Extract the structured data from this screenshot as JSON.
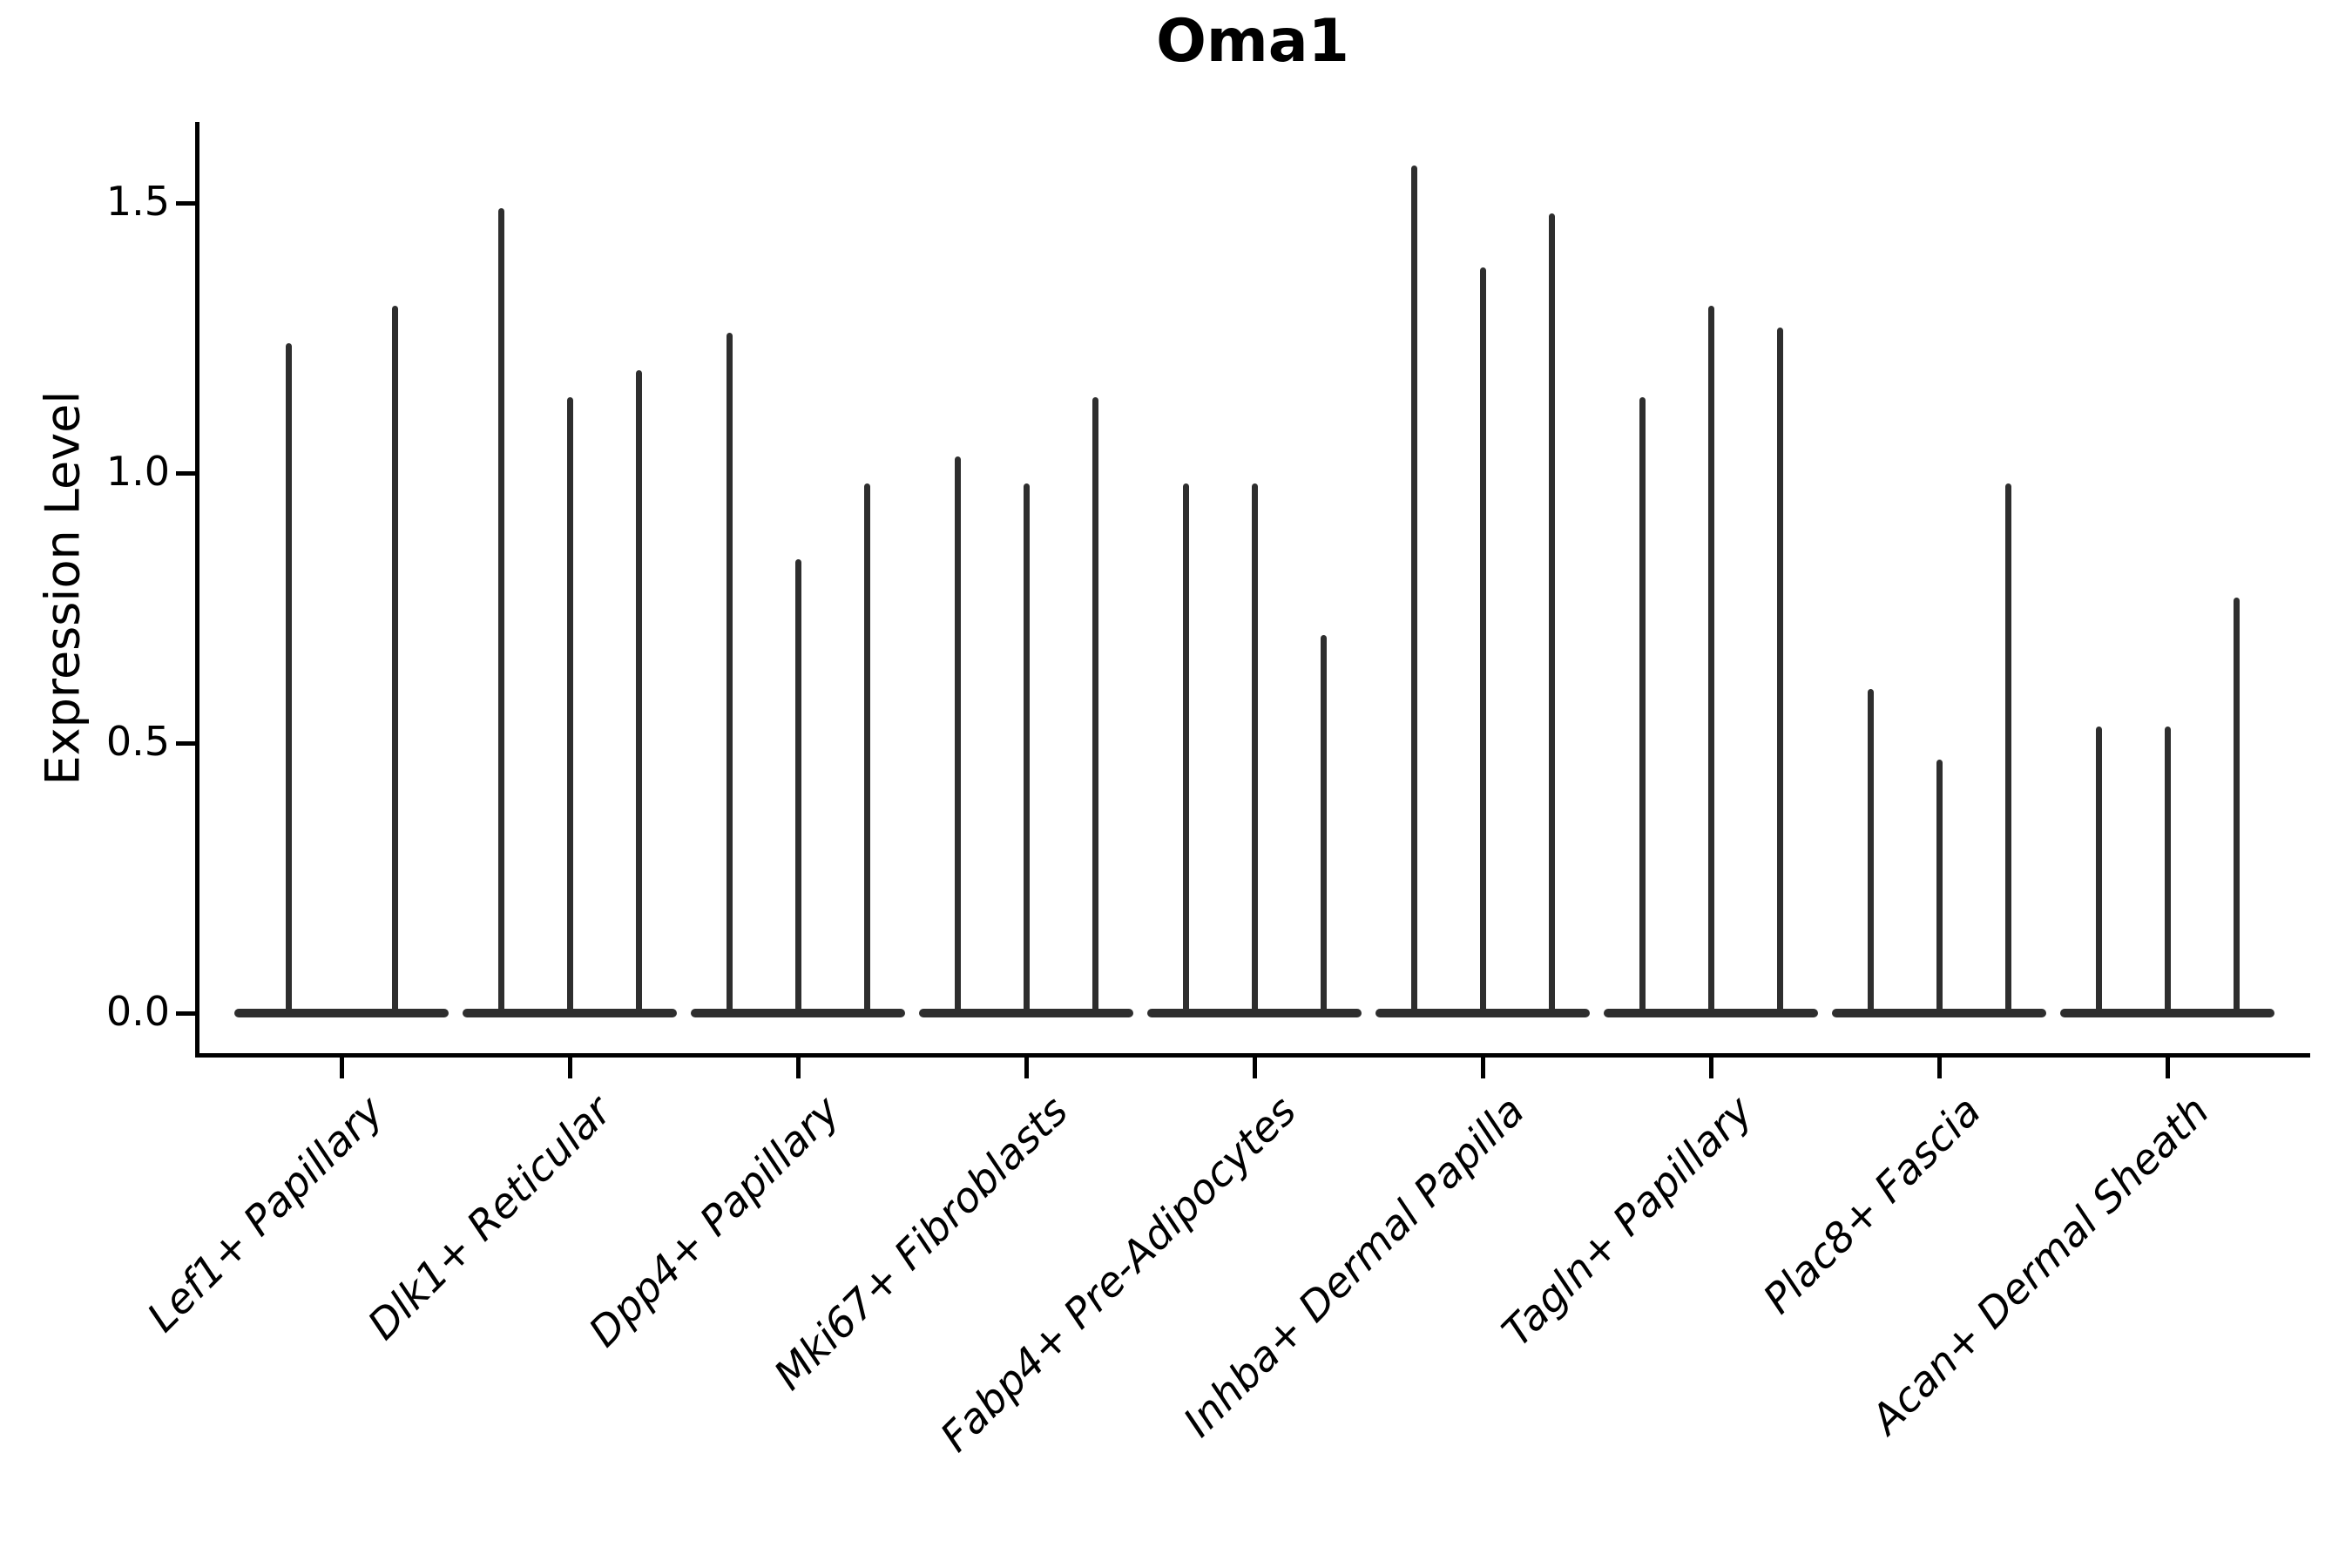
{
  "title": "Oma1",
  "axes": {
    "ylabel": "Expression Level",
    "ytick_labels": [
      "0.0",
      "0.5",
      "1.0",
      "1.5"
    ]
  },
  "colors": {
    "violin": "#2e2e2e",
    "axis": "#000000",
    "text": "#000000",
    "background": "#ffffff"
  },
  "chart_data": {
    "type": "violin",
    "title": "Oma1",
    "xlabel": "",
    "ylabel": "Expression Level",
    "ylim": [
      -0.07,
      1.65
    ],
    "yticks": [
      0.0,
      0.5,
      1.0,
      1.5
    ],
    "legend": "none",
    "grid": false,
    "description": "Seurat-style violin plot of Oma1 expression; most cells are near 0 so each violin is a flat base at 0 with a thin spike whose top is the maximum expression value.",
    "categories": [
      "Lef1+ Papillary",
      "Dlk1+ Reticular",
      "Dpp4+ Papillary",
      "Mki67+ Fibroblasts",
      "Fabp4+ Pre-Adipocytes",
      "Inhba+ Dermal Papilla",
      "Tagln+ Papillary",
      "Plac8+ Fascia",
      "Acan+ Dermal Sheath"
    ],
    "series": [
      {
        "name": "Lef1+ Papillary",
        "violin_peak_values": [
          1.24,
          1.31
        ]
      },
      {
        "name": "Dlk1+ Reticular",
        "violin_peak_values": [
          1.49,
          1.14,
          1.19
        ]
      },
      {
        "name": "Dpp4+ Papillary",
        "violin_peak_values": [
          1.26,
          0.84,
          0.98
        ]
      },
      {
        "name": "Mki67+ Fibroblasts",
        "violin_peak_values": [
          1.03,
          0.98,
          1.14
        ]
      },
      {
        "name": "Fabp4+ Pre-Adipocytes",
        "violin_peak_values": [
          0.98,
          0.98,
          0.7
        ]
      },
      {
        "name": "Inhba+ Dermal Papilla",
        "violin_peak_values": [
          1.57,
          1.38,
          1.48
        ]
      },
      {
        "name": "Tagln+ Papillary",
        "violin_peak_values": [
          1.14,
          1.31,
          1.27
        ]
      },
      {
        "name": "Plac8+ Fascia",
        "violin_peak_values": [
          0.6,
          0.47,
          0.98
        ]
      },
      {
        "name": "Acan+ Dermal Sheath",
        "violin_peak_values": [
          0.53,
          0.53,
          0.77
        ]
      }
    ]
  }
}
